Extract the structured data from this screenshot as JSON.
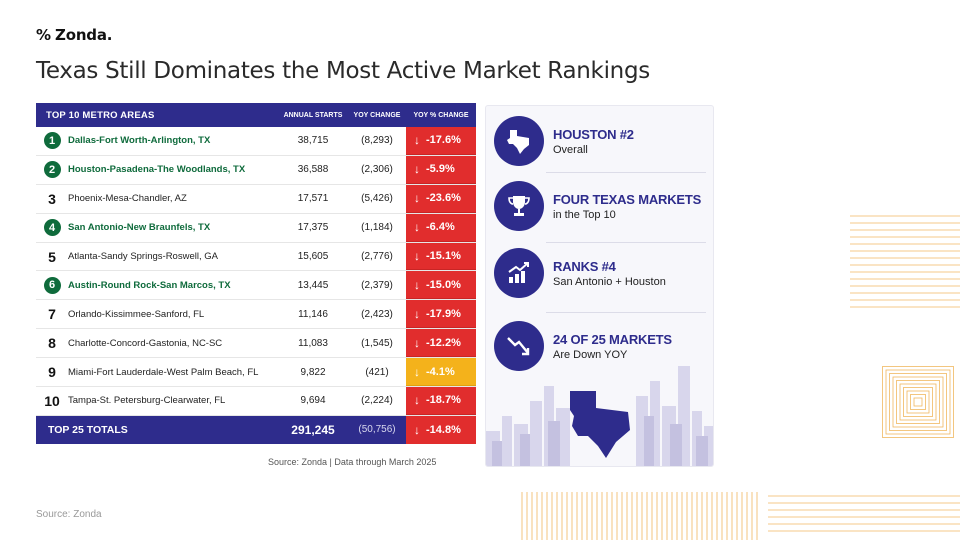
{
  "logo": {
    "mark": "%",
    "text": "Zonda."
  },
  "title": "Texas Still Dominates the Most Active Market Rankings",
  "footer_source": "Source: Zonda",
  "table": {
    "headers": {
      "metro": "TOP 10 METRO AREAS",
      "starts": "ANNUAL STARTS",
      "change": "YOY CHANGE",
      "pct": "YOY % CHANGE"
    },
    "rows": [
      {
        "rank": "1",
        "metro": "Dallas-Fort Worth-Arlington, TX",
        "starts": "38,715",
        "change": "(8,293)",
        "pct": "-17.6%",
        "texas": true,
        "pct_color": "#e12d2d"
      },
      {
        "rank": "2",
        "metro": "Houston-Pasadena-The Woodlands, TX",
        "starts": "36,588",
        "change": "(2,306)",
        "pct": "-5.9%",
        "texas": true,
        "pct_color": "#e12d2d"
      },
      {
        "rank": "3",
        "metro": "Phoenix-Mesa-Chandler, AZ",
        "starts": "17,571",
        "change": "(5,426)",
        "pct": "-23.6%",
        "texas": false,
        "pct_color": "#e12d2d"
      },
      {
        "rank": "4",
        "metro": "San Antonio-New Braunfels, TX",
        "starts": "17,375",
        "change": "(1,184)",
        "pct": "-6.4%",
        "texas": true,
        "pct_color": "#e12d2d"
      },
      {
        "rank": "5",
        "metro": "Atlanta-Sandy Springs-Roswell, GA",
        "starts": "15,605",
        "change": "(2,776)",
        "pct": "-15.1%",
        "texas": false,
        "pct_color": "#e12d2d"
      },
      {
        "rank": "6",
        "metro": "Austin-Round Rock-San Marcos, TX",
        "starts": "13,445",
        "change": "(2,379)",
        "pct": "-15.0%",
        "texas": true,
        "pct_color": "#e12d2d"
      },
      {
        "rank": "7",
        "metro": "Orlando-Kissimmee-Sanford, FL",
        "starts": "11,146",
        "change": "(2,423)",
        "pct": "-17.9%",
        "texas": false,
        "pct_color": "#e12d2d"
      },
      {
        "rank": "8",
        "metro": "Charlotte-Concord-Gastonia, NC-SC",
        "starts": "11,083",
        "change": "(1,545)",
        "pct": "-12.2%",
        "texas": false,
        "pct_color": "#e12d2d"
      },
      {
        "rank": "9",
        "metro": "Miami-Fort Lauderdale-West Palm Beach, FL",
        "starts": "9,822",
        "change": "(421)",
        "pct": "-4.1%",
        "texas": false,
        "pct_color": "#f4b21b"
      },
      {
        "rank": "10",
        "metro": "Tampa-St. Petersburg-Clearwater, FL",
        "starts": "9,694",
        "change": "(2,224)",
        "pct": "-18.7%",
        "texas": false,
        "pct_color": "#e12d2d"
      }
    ],
    "totals": {
      "label": "TOP 25 TOTALS",
      "starts": "291,245",
      "change": "(50,756)",
      "pct": "-14.8%"
    },
    "arrow": "↓",
    "source": "Source: Zonda  |  Data through March 2025"
  },
  "highlights": [
    {
      "icon": "texas-icon",
      "head": "HOUSTON #2",
      "sub": "Overall"
    },
    {
      "icon": "trophy-icon",
      "head": "FOUR TEXAS MARKETS",
      "sub": "in the Top 10"
    },
    {
      "icon": "rising-chart-icon",
      "head": "RANKS #4",
      "sub": "San Antonio + Houston"
    },
    {
      "icon": "declining-chart-icon",
      "head": "24 OF 25 MARKETS",
      "sub": "Are Down YOY"
    }
  ],
  "colors": {
    "navy": "#2e2c8c",
    "texas_green": "#0f6b3c",
    "red": "#e12d2d",
    "yellow": "#f4b21b",
    "gold_lines": "#f0b860"
  }
}
